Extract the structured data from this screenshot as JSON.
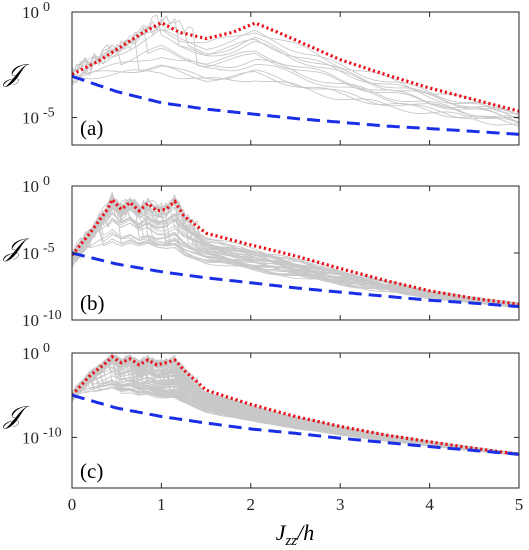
{
  "figure": {
    "x_label": "J",
    "x_label_sub": "zz",
    "x_label_tail": "/h",
    "x_tick_labels": [
      "0",
      "1",
      "2",
      "3",
      "4",
      "5"
    ]
  },
  "chart_data": [
    {
      "type": "line",
      "panel": "(a)",
      "ylabel": "𝒥",
      "yscale": "log",
      "ylim": [
        5e-07,
        1
      ],
      "xlim": [
        0,
        5
      ],
      "y_tick_labels": [
        "10 0",
        "10 -5"
      ],
      "y_tick_values": [
        1,
        1e-05
      ],
      "gray_family_count": 12,
      "series": [
        {
          "color": "#e8111a",
          "style": "dotted",
          "x": [
            0,
            0.3,
            0.6,
            0.8,
            1.0,
            1.2,
            1.5,
            1.8,
            2.05,
            2.3,
            2.7,
            3.0,
            3.5,
            4.0,
            4.5,
            5.0
          ],
          "y": [
            0.0011,
            0.0048,
            0.031,
            0.11,
            0.31,
            0.11,
            0.055,
            0.11,
            0.3,
            0.11,
            0.02,
            0.0055,
            0.0011,
            0.00025,
            7e-05,
            2e-05
          ]
        },
        {
          "color": "#1a2ee6",
          "style": "dashed",
          "x": [
            0,
            0.5,
            1.0,
            1.5,
            2.0,
            2.5,
            3.0,
            3.5,
            4.0,
            4.5,
            5.0
          ],
          "y": [
            0.0009,
            0.00017,
            5e-05,
            2.5e-05,
            1.5e-05,
            9e-06,
            6e-06,
            4e-06,
            3e-06,
            2.2e-06,
            1.6e-06
          ]
        }
      ]
    },
    {
      "type": "line",
      "panel": "(b)",
      "ylabel": "𝒥",
      "yscale": "log",
      "ylim": [
        1e-10,
        1
      ],
      "xlim": [
        0,
        5
      ],
      "y_tick_labels": [
        "10 0",
        "10 -5",
        "10 -10"
      ],
      "y_tick_values": [
        1,
        1e-05,
        1e-10
      ],
      "gray_family_count": 40,
      "series": [
        {
          "color": "#e8111a",
          "style": "dotted",
          "x": [
            0,
            0.2,
            0.4,
            0.45,
            0.55,
            0.65,
            0.75,
            0.85,
            0.95,
            1.05,
            1.15,
            1.25,
            1.5,
            2.0,
            2.5,
            3.0,
            3.5,
            4.0,
            4.5,
            5.0
          ],
          "y": [
            7e-06,
            0.0003,
            0.02,
            0.1,
            0.018,
            0.06,
            0.014,
            0.05,
            0.014,
            0.018,
            0.07,
            0.006,
            0.0003,
            4e-05,
            6e-06,
            7e-07,
            9e-08,
            1.5e-08,
            4e-09,
            1.5e-09
          ]
        },
        {
          "color": "#1a2ee6",
          "style": "dashed",
          "x": [
            0,
            0.5,
            1.0,
            1.5,
            2.0,
            2.5,
            3.0,
            3.5,
            4.0,
            4.5,
            5.0
          ],
          "y": [
            1e-05,
            1.5e-06,
            4e-07,
            1.4e-07,
            6e-08,
            2.5e-08,
            1.2e-08,
            6e-09,
            3e-09,
            1.8e-09,
            1e-09
          ]
        }
      ]
    },
    {
      "type": "line",
      "panel": "(c)",
      "ylabel": "𝒥",
      "yscale": "log",
      "ylim": [
        1e-16,
        1
      ],
      "xlim": [
        0,
        5
      ],
      "y_tick_labels": [
        "10 0",
        "10 -10"
      ],
      "y_tick_values": [
        1,
        1e-10
      ],
      "gray_family_count": 100,
      "series": [
        {
          "color": "#e8111a",
          "style": "dotted",
          "x": [
            0,
            0.2,
            0.4,
            0.45,
            0.55,
            0.65,
            0.75,
            0.85,
            0.95,
            1.05,
            1.15,
            1.25,
            1.5,
            2.0,
            2.5,
            3.0,
            3.5,
            4.0,
            4.5,
            5.0
          ],
          "y": [
            1e-05,
            0.002,
            0.1,
            0.35,
            0.07,
            0.2,
            0.04,
            0.15,
            0.04,
            0.07,
            0.15,
            0.01,
            4e-05,
            8e-07,
            3e-08,
            2e-09,
            2e-10,
            3e-11,
            5e-12,
            1e-12
          ]
        },
        {
          "color": "#1a2ee6",
          "style": "dashed",
          "x": [
            0,
            0.5,
            1.0,
            1.5,
            2.0,
            2.5,
            3.0,
            3.5,
            4.0,
            4.5,
            5.0
          ],
          "y": [
            1e-05,
            3e-07,
            3e-08,
            5e-09,
            1e-09,
            3e-10,
            8e-11,
            2.5e-11,
            8e-12,
            2.8e-12,
            1e-12
          ]
        }
      ]
    }
  ]
}
